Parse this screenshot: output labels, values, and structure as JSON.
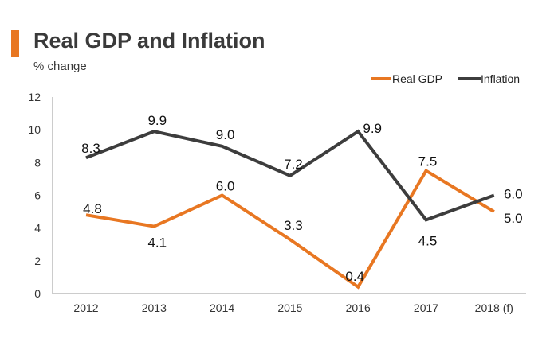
{
  "header": {
    "title": "Real GDP and Inflation",
    "subtitle": "% change"
  },
  "colors": {
    "accent": "#e87722",
    "real_gdp": "#e87722",
    "inflation": "#3d3d3d",
    "axis": "#9a9a9a"
  },
  "chart_data": {
    "type": "line",
    "title": "Real GDP and Inflation",
    "subtitle": "% change",
    "xlabel": "",
    "ylabel": "% change",
    "categories": [
      "2012",
      "2013",
      "2014",
      "2015",
      "2016",
      "2017",
      "2018 (f)"
    ],
    "ylim": [
      0,
      12
    ],
    "yticks": [
      "0",
      "2",
      "4",
      "6",
      "8",
      "10",
      "12"
    ],
    "legend_position": "top-right",
    "grid": false,
    "series": [
      {
        "name": "Real GDP",
        "color": "#e87722",
        "values": [
          4.8,
          4.1,
          6.0,
          3.3,
          0.4,
          7.5,
          5.0
        ],
        "labels": [
          "4.8",
          "4.1",
          "6.0",
          "3.3",
          "0.4",
          "7.5",
          "5.0"
        ]
      },
      {
        "name": "Inflation",
        "color": "#3d3d3d",
        "values": [
          8.3,
          9.9,
          9.0,
          7.2,
          9.9,
          4.5,
          6.0
        ],
        "labels": [
          "8.3",
          "9.9",
          "9.0",
          "7.2",
          "9.9",
          "4.5",
          "6.0"
        ]
      }
    ]
  }
}
